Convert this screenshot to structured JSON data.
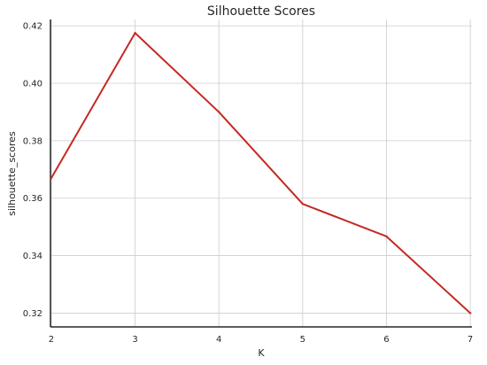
{
  "chart_data": {
    "type": "line",
    "title": "Silhouette Scores",
    "xlabel": "K",
    "ylabel": "silhouette_scores",
    "x": [
      2,
      3,
      4,
      5,
      6,
      7
    ],
    "series": [
      {
        "values": [
          0.367,
          0.4175,
          0.39,
          0.358,
          0.3467,
          0.32
        ],
        "color": "#c42a22"
      }
    ],
    "xticks": [
      "2",
      "3",
      "4",
      "5",
      "6",
      "7"
    ],
    "yticks": [
      "0.32",
      "0.34",
      "0.36",
      "0.38",
      "0.40",
      "0.42"
    ],
    "xlim": [
      1.99,
      7.02
    ],
    "ylim": [
      0.3152,
      0.4222
    ],
    "grid": true
  }
}
